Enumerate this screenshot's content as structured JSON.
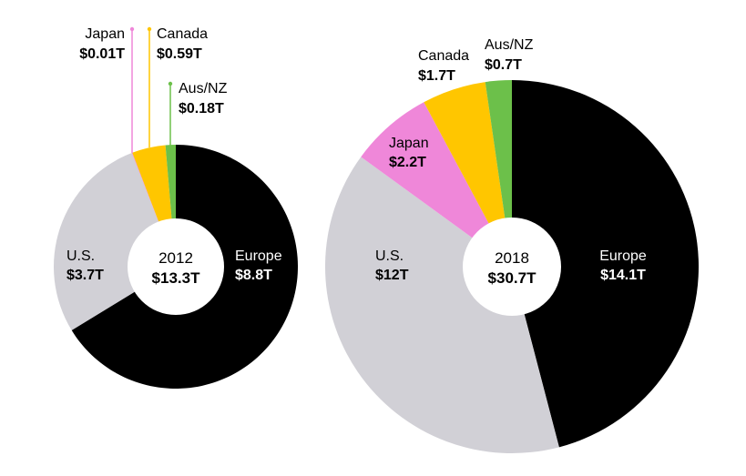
{
  "chart_data": [
    {
      "type": "pie",
      "variant": "donut",
      "year": "2012",
      "total": "$13.3T",
      "slices": [
        {
          "name": "Europe",
          "value_label": "$8.8T",
          "value": 8.8,
          "color": "#000000",
          "label_mode": "inside"
        },
        {
          "name": "U.S.",
          "value_label": "$3.7T",
          "value": 3.7,
          "color": "#d1d0d6",
          "label_mode": "inside"
        },
        {
          "name": "Japan",
          "value_label": "$0.01T",
          "value": 0.01,
          "color": "#ef87d9",
          "label_mode": "callout"
        },
        {
          "name": "Canada",
          "value_label": "$0.59T",
          "value": 0.59,
          "color": "#ffc600",
          "label_mode": "callout"
        },
        {
          "name": "Aus/NZ",
          "value_label": "$0.18T",
          "value": 0.18,
          "color": "#6cc04a",
          "label_mode": "callout"
        }
      ]
    },
    {
      "type": "pie",
      "variant": "donut",
      "year": "2018",
      "total": "$30.7T",
      "slices": [
        {
          "name": "Europe",
          "value_label": "$14.1T",
          "value": 14.1,
          "color": "#000000",
          "label_mode": "inside"
        },
        {
          "name": "U.S.",
          "value_label": "$12T",
          "value": 12,
          "color": "#d1d0d6",
          "label_mode": "inside"
        },
        {
          "name": "Japan",
          "value_label": "$2.2T",
          "value": 2.2,
          "color": "#ef87d9",
          "label_mode": "inside"
        },
        {
          "name": "Canada",
          "value_label": "$1.7T",
          "value": 1.7,
          "color": "#ffc600",
          "label_mode": "outside"
        },
        {
          "name": "Aus/NZ",
          "value_label": "$0.7T",
          "value": 0.7,
          "color": "#6cc04a",
          "label_mode": "outside"
        }
      ]
    }
  ]
}
